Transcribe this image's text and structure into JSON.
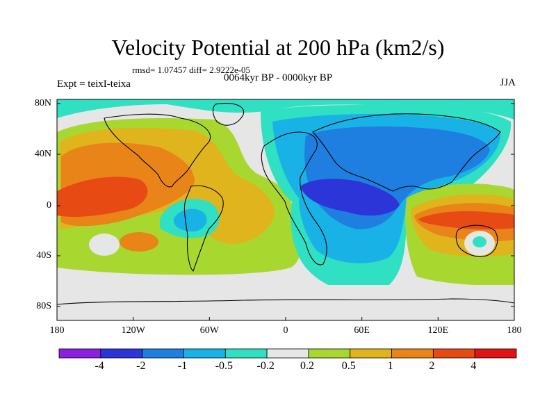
{
  "title": "Velocity Potential at 200 hPa (km2/s)",
  "stats": "rmsd= 1.07457 diff= 2.9222e-05",
  "experiment": "Expt = teixI-teixa",
  "period": "0064kyr BP - 0000kyr BP",
  "season": "JJA",
  "lat_labels": [
    "80N",
    "40N",
    "0",
    "40S",
    "80S"
  ],
  "lon_labels": [
    "180",
    "120W",
    "60W",
    "0",
    "60E",
    "120E",
    "180"
  ],
  "colorbar": {
    "labels": [
      "-4",
      "-2",
      "-1",
      "-0.5",
      "-0.2",
      "0.2",
      "0.5",
      "1",
      "2",
      "4"
    ],
    "colors": [
      "#8c1fe0",
      "#2b35d8",
      "#1e7fe0",
      "#19b2e6",
      "#2fe0c2",
      "#e6e6e6",
      "#a8d830",
      "#e0b41c",
      "#e88418",
      "#e84a14",
      "#e01414"
    ]
  }
}
